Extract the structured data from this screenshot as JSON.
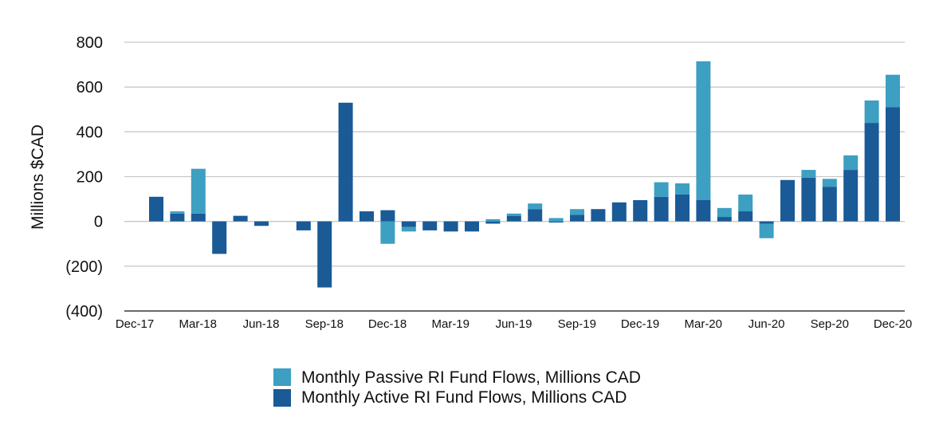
{
  "chart_data": {
    "type": "bar",
    "stacked": true,
    "ylabel": "Millions $CAD",
    "ylim": [
      -400,
      800
    ],
    "yticks": [
      800,
      600,
      400,
      200,
      0,
      -200,
      -400
    ],
    "ytick_labels": [
      "800",
      "600",
      "400",
      "200",
      "0",
      "(200)",
      "(400)"
    ],
    "grid": true,
    "legend_position": "bottom",
    "x_tick_labels": [
      "Dec-17",
      "Mar-18",
      "Jun-18",
      "Sep-18",
      "Dec-18",
      "Mar-19",
      "Jun-19",
      "Sep-19",
      "Dec-19",
      "Mar-20",
      "Jun-20",
      "Sep-20",
      "Dec-20"
    ],
    "categories": [
      "Jan-18",
      "Feb-18",
      "Mar-18",
      "Apr-18",
      "May-18",
      "Jun-18",
      "Jul-18",
      "Aug-18",
      "Sep-18",
      "Oct-18",
      "Nov-18",
      "Dec-18",
      "Jan-19",
      "Feb-19",
      "Mar-19",
      "Apr-19",
      "May-19",
      "Jun-19",
      "Jul-19",
      "Aug-19",
      "Sep-19",
      "Oct-19",
      "Nov-19",
      "Dec-19",
      "Jan-20",
      "Feb-20",
      "Mar-20",
      "Apr-20",
      "May-20",
      "Jun-20",
      "Jul-20",
      "Aug-20",
      "Sep-20",
      "Oct-20",
      "Nov-20",
      "Dec-20"
    ],
    "series": [
      {
        "name": "Monthly Active RI Fund Flows, Millions CAD",
        "color": "#1a5a96",
        "values": [
          110,
          35,
          35,
          -145,
          25,
          -20,
          0,
          -40,
          -295,
          530,
          45,
          50,
          -25,
          -40,
          -45,
          -45,
          -10,
          25,
          55,
          -5,
          30,
          55,
          85,
          95,
          110,
          120,
          95,
          20,
          45,
          -10,
          185,
          195,
          155,
          230,
          440,
          510
        ]
      },
      {
        "name": "Monthly Passive RI Fund Flows, Millions CAD",
        "color": "#3d9fc2",
        "values": [
          0,
          10,
          200,
          0,
          0,
          0,
          0,
          0,
          0,
          0,
          0,
          -100,
          -20,
          0,
          0,
          0,
          10,
          10,
          25,
          15,
          25,
          0,
          0,
          0,
          65,
          50,
          620,
          40,
          75,
          -65,
          0,
          35,
          35,
          65,
          100,
          145
        ]
      }
    ]
  },
  "legend": [
    {
      "label": "Monthly Passive RI Fund Flows, Millions CAD",
      "color": "#3d9fc2"
    },
    {
      "label": "Monthly Active RI Fund Flows, Millions CAD",
      "color": "#1a5a96"
    }
  ]
}
